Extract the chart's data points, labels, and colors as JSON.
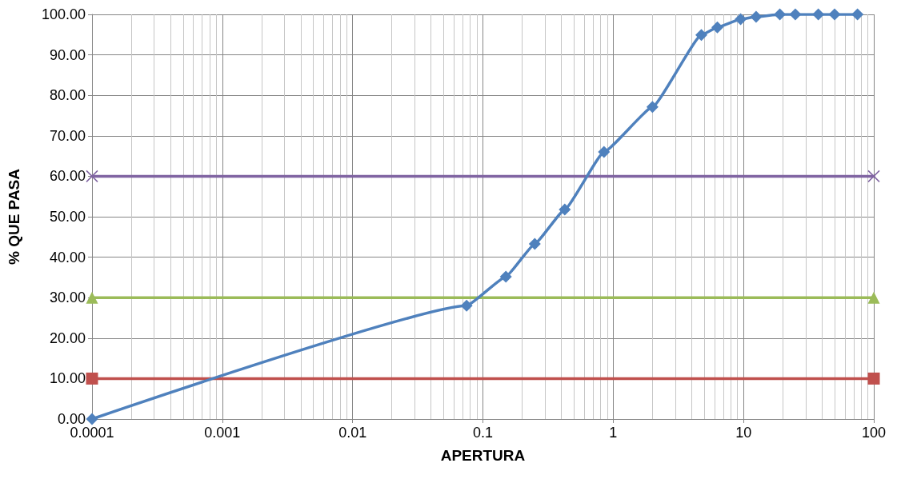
{
  "chart_data": {
    "type": "line",
    "xlabel": "APERTURA",
    "ylabel": "% QUE PASA",
    "log": "x",
    "grid": true,
    "xlim": [
      0.0001,
      100
    ],
    "xticks": [
      0.0001,
      0.001,
      0.01,
      0.1,
      1,
      10,
      100
    ],
    "ylim": [
      0,
      100
    ],
    "yticks": [
      {
        "value": 0,
        "label": "0.00"
      },
      {
        "value": 10,
        "label": "10.00"
      },
      {
        "value": 20,
        "label": "20.00"
      },
      {
        "value": 30,
        "label": "30.00"
      },
      {
        "value": 40,
        "label": "40.00"
      },
      {
        "value": 50,
        "label": "50.00"
      },
      {
        "value": 60,
        "label": "60.00"
      },
      {
        "value": 70,
        "label": "70.00"
      },
      {
        "value": 80,
        "label": "80.00"
      },
      {
        "value": 90,
        "label": "90.00"
      },
      {
        "value": 100,
        "label": "100.00"
      }
    ],
    "series": [
      {
        "color": "#4f81bd",
        "marker": "diamond",
        "x": [
          0.0001,
          0.075,
          0.15,
          0.25,
          0.425,
          0.85,
          2,
          4.75,
          6.3,
          9.5,
          12.5,
          19,
          25,
          37.5,
          50,
          75
        ],
        "values": [
          0,
          28,
          35.2,
          43.3,
          51.8,
          66,
          77.1,
          94.9,
          96.8,
          98.8,
          99.4,
          100,
          100,
          100,
          100,
          100
        ]
      },
      {
        "color": "#c0504d",
        "marker": "square",
        "x": [
          0.0001,
          100
        ],
        "values": [
          10,
          10
        ]
      },
      {
        "color": "#9bbb59",
        "marker": "triangle",
        "x": [
          0.0001,
          100
        ],
        "values": [
          30,
          30
        ]
      },
      {
        "color": "#8064a2",
        "marker": "cross",
        "x": [
          0.0001,
          100
        ],
        "values": [
          60,
          60
        ]
      }
    ]
  }
}
